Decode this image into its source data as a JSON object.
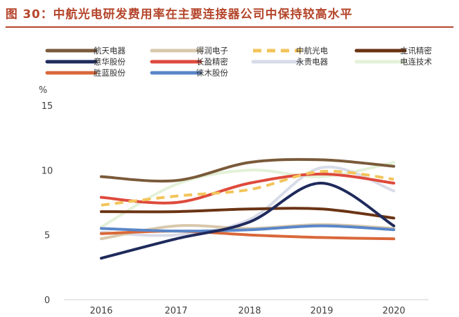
{
  "figure": {
    "title": "图 30：中航光电研发费用率在主要连接器公司中保持较高水平"
  },
  "chart_data": {
    "type": "line",
    "title": "图 30：中航光电研发费用率在主要连接器公司中保持较高水平",
    "ylabel": "%",
    "xlabel": "",
    "ylim": [
      0,
      15
    ],
    "yticks": [
      "0",
      "5",
      "10",
      "15"
    ],
    "categories": [
      "2016",
      "2017",
      "2018",
      "2019",
      "2020"
    ],
    "grid": false,
    "legend_position": "top",
    "series": [
      {
        "name": "航天电器",
        "color": "#7a5a3a",
        "dashed": false,
        "values": [
          9.5,
          9.2,
          10.6,
          10.8,
          10.3
        ]
      },
      {
        "name": "得润电子",
        "color": "#d8c8ac",
        "dashed": false,
        "values": [
          4.7,
          5.7,
          5.5,
          5.8,
          5.5
        ]
      },
      {
        "name": "中航光电",
        "color": "#f3c45a",
        "dashed": true,
        "values": [
          7.3,
          8.0,
          8.5,
          9.9,
          9.3
        ]
      },
      {
        "name": "立讯精密",
        "color": "#6b3414",
        "dashed": false,
        "values": [
          6.8,
          6.8,
          7.0,
          7.0,
          6.3
        ]
      },
      {
        "name": "意华股份",
        "color": "#1f2a5c",
        "dashed": false,
        "values": [
          3.2,
          4.7,
          6.0,
          9.0,
          5.7
        ]
      },
      {
        "name": "长盈精密",
        "color": "#de4a3c",
        "dashed": false,
        "values": [
          7.9,
          7.5,
          9.0,
          9.7,
          9.0
        ]
      },
      {
        "name": "永贵电器",
        "color": "#d8dbe8",
        "dashed": false,
        "values": [
          5.2,
          5.0,
          6.2,
          10.2,
          8.4
        ]
      },
      {
        "name": "电连技术",
        "color": "#e3f1d8",
        "dashed": false,
        "values": [
          5.6,
          8.9,
          10.0,
          9.5,
          10.6
        ]
      },
      {
        "name": "胜蓝股份",
        "color": "#d9683a",
        "dashed": false,
        "values": [
          5.1,
          5.3,
          5.0,
          4.8,
          4.7
        ]
      },
      {
        "name": "徕木股份",
        "color": "#5a86c8",
        "dashed": false,
        "values": [
          5.5,
          5.3,
          5.4,
          5.7,
          5.4
        ]
      }
    ]
  }
}
